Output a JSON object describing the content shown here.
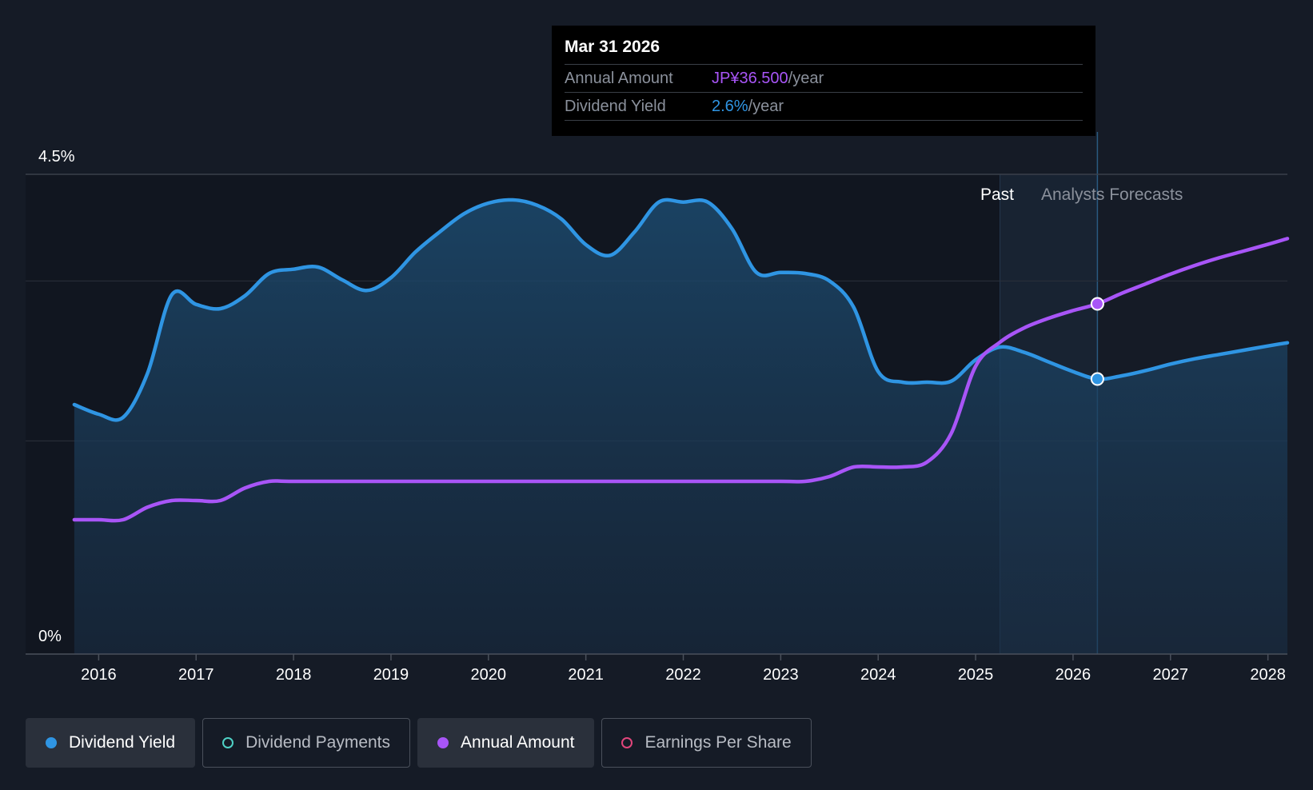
{
  "tooltip": {
    "date": "Mar 31 2026",
    "rows": [
      {
        "label": "Annual Amount",
        "value": "JP¥36.500",
        "unit": "/year"
      },
      {
        "label": "Dividend Yield",
        "value": "2.6%",
        "unit": "/year"
      }
    ]
  },
  "region_labels": {
    "past": "Past",
    "forecast": "Analysts Forecasts"
  },
  "legend": [
    {
      "label": "Dividend Yield",
      "color": "#2f95e3",
      "active": true,
      "filled": true
    },
    {
      "label": "Dividend Payments",
      "color": "#4fd1c5",
      "active": false,
      "filled": false
    },
    {
      "label": "Annual Amount",
      "color": "#a855f7",
      "active": true,
      "filled": true
    },
    {
      "label": "Earnings Per Share",
      "color": "#e0457b",
      "active": false,
      "filled": false
    }
  ],
  "colors": {
    "yield": "#2f95e3",
    "amount": "#a855f7",
    "background": "#151b26"
  },
  "chart_data": {
    "type": "line",
    "title": "",
    "xlabel": "",
    "ylabel": "",
    "y_ticks": [
      "0%",
      "4.5%"
    ],
    "ylim": [
      0,
      4.5
    ],
    "xlim": [
      2015.25,
      2028.2
    ],
    "x_ticks": [
      "2016",
      "2017",
      "2018",
      "2019",
      "2020",
      "2021",
      "2022",
      "2023",
      "2024",
      "2025",
      "2026",
      "2027",
      "2028"
    ],
    "past_forecast_boundary": 2025.25,
    "highlight_x": 2026.25,
    "series": [
      {
        "name": "Dividend Yield",
        "unit": "%",
        "x": [
          2015.75,
          2016.0,
          2016.25,
          2016.5,
          2016.75,
          2017.0,
          2017.25,
          2017.5,
          2017.75,
          2018.0,
          2018.25,
          2018.5,
          2018.75,
          2019.0,
          2019.25,
          2019.5,
          2019.75,
          2020.0,
          2020.25,
          2020.5,
          2020.75,
          2021.0,
          2021.25,
          2021.5,
          2021.75,
          2022.0,
          2022.25,
          2022.5,
          2022.75,
          2023.0,
          2023.25,
          2023.5,
          2023.75,
          2024.0,
          2024.25,
          2024.5,
          2024.75,
          2025.0,
          2025.25,
          2025.5,
          2025.75,
          2026.0,
          2026.25,
          2026.5,
          2026.75,
          2027.0,
          2027.25,
          2027.5,
          2027.75,
          2028.0,
          2028.2
        ],
        "values": [
          2.34,
          2.25,
          2.22,
          2.63,
          3.37,
          3.28,
          3.24,
          3.36,
          3.57,
          3.61,
          3.63,
          3.51,
          3.41,
          3.53,
          3.77,
          3.96,
          4.13,
          4.23,
          4.26,
          4.21,
          4.08,
          3.84,
          3.74,
          3.96,
          4.24,
          4.24,
          4.24,
          3.99,
          3.58,
          3.58,
          3.57,
          3.5,
          3.25,
          2.65,
          2.55,
          2.55,
          2.56,
          2.76,
          2.88,
          2.83,
          2.74,
          2.65,
          2.58,
          2.61,
          2.66,
          2.72,
          2.77,
          2.81,
          2.85,
          2.89,
          2.92
        ]
      },
      {
        "name": "Annual Amount",
        "unit": "JP¥",
        "note": "plotted on a secondary scale",
        "x": [
          2015.75,
          2016.0,
          2016.25,
          2016.5,
          2016.75,
          2017.0,
          2017.25,
          2017.5,
          2017.75,
          2018.0,
          2019.0,
          2020.0,
          2021.0,
          2022.0,
          2023.0,
          2023.25,
          2023.5,
          2023.75,
          2024.0,
          2024.25,
          2024.5,
          2024.75,
          2025.0,
          2025.25,
          2025.5,
          2025.75,
          2026.0,
          2026.25,
          2026.5,
          2026.75,
          2027.0,
          2027.25,
          2027.5,
          2027.75,
          2028.0,
          2028.2
        ],
        "values": [
          14.0,
          14.0,
          14.0,
          15.3,
          16.0,
          16.0,
          16.0,
          17.3,
          18.0,
          18.0,
          18.0,
          18.0,
          18.0,
          18.0,
          18.0,
          18.0,
          18.5,
          19.5,
          19.5,
          19.5,
          20.0,
          23.0,
          30.0,
          32.5,
          34.0,
          35.0,
          35.8,
          36.5,
          37.6,
          38.6,
          39.6,
          40.5,
          41.3,
          42.0,
          42.7,
          43.3
        ]
      }
    ]
  }
}
